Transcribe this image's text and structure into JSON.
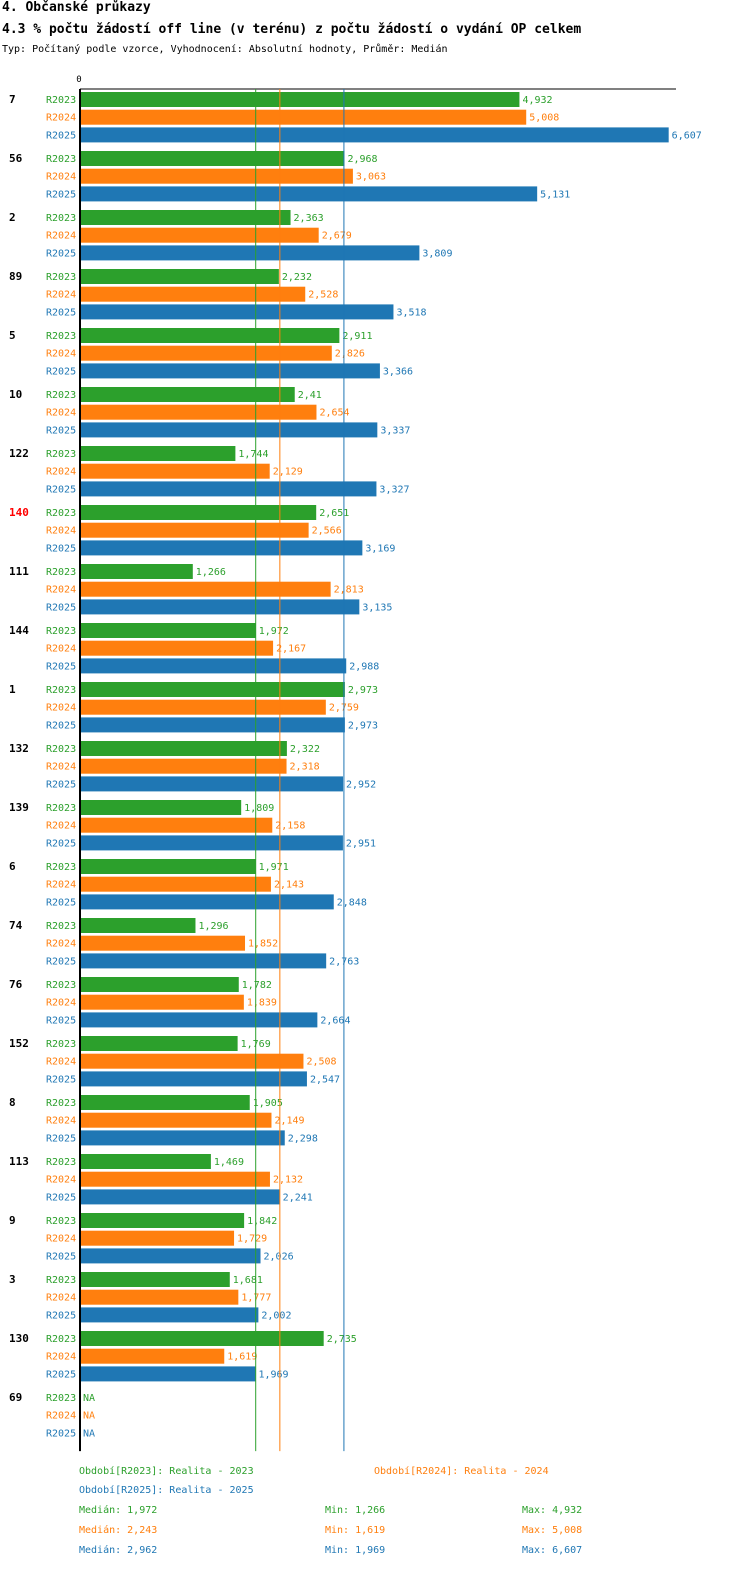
{
  "header": {
    "title": "4. Občanské průkazy",
    "subtitle": "4.3 % počtu žádostí off line (v terénu) z počtu žádostí o vydání OP celkem",
    "type_line": "Typ: Počítaný podle vzorce, Vyhodnocení: Absolutní hodnoty, Průměr: Medián"
  },
  "chart_data": {
    "type": "bar",
    "orientation": "horizontal",
    "axis_zero_label": "0",
    "xlim": [
      0,
      6.9
    ],
    "categories": [
      "7",
      "56",
      "2",
      "89",
      "5",
      "10",
      "122",
      "140",
      "111",
      "144",
      "1",
      "132",
      "139",
      "6",
      "74",
      "76",
      "152",
      "8",
      "113",
      "9",
      "3",
      "130",
      "69"
    ],
    "highlight_category": "140",
    "highlight_color": "#ff0000",
    "series": [
      {
        "name": "R2023",
        "color": "#2ca02c",
        "values": [
          4.932,
          2.968,
          2.363,
          2.232,
          2.911,
          2.41,
          1.744,
          2.651,
          1.266,
          1.972,
          2.973,
          2.322,
          1.809,
          1.971,
          1.296,
          1.782,
          1.769,
          1.905,
          1.469,
          1.842,
          1.681,
          2.735,
          null
        ],
        "labels": [
          "4,932",
          "2,968",
          "2,363",
          "2,232",
          "2,911",
          "2,41",
          "1,744",
          "2,651",
          "1,266",
          "1,972",
          "2,973",
          "2,322",
          "1,809",
          "1,971",
          "1,296",
          "1,782",
          "1,769",
          "1,905",
          "1,469",
          "1,842",
          "1,681",
          "2,735",
          "NA"
        ]
      },
      {
        "name": "R2024",
        "color": "#ff7f0e",
        "values": [
          5.008,
          3.063,
          2.679,
          2.528,
          2.826,
          2.654,
          2.129,
          2.566,
          2.813,
          2.167,
          2.759,
          2.318,
          2.158,
          2.143,
          1.852,
          1.839,
          2.508,
          2.149,
          2.132,
          1.729,
          1.777,
          1.619,
          null
        ],
        "labels": [
          "5,008",
          "3,063",
          "2,679",
          "2,528",
          "2,826",
          "2,654",
          "2,129",
          "2,566",
          "2,813",
          "2,167",
          "2,759",
          "2,318",
          "2,158",
          "2,143",
          "1,852",
          "1,839",
          "2,508",
          "2,149",
          "2,132",
          "1,729",
          "1,777",
          "1,619",
          "NA"
        ]
      },
      {
        "name": "R2025",
        "color": "#1f77b4",
        "values": [
          6.607,
          5.131,
          3.809,
          3.518,
          3.366,
          3.337,
          3.327,
          3.169,
          3.135,
          2.988,
          2.973,
          2.952,
          2.951,
          2.848,
          2.763,
          2.664,
          2.547,
          2.298,
          2.241,
          2.026,
          2.002,
          1.969,
          null
        ],
        "labels": [
          "6,607",
          "5,131",
          "3,809",
          "3,518",
          "3,366",
          "3,337",
          "3,327",
          "3,169",
          "3,135",
          "2,988",
          "2,973",
          "2,952",
          "2,951",
          "2,848",
          "2,763",
          "2,664",
          "2,547",
          "2,298",
          "2,241",
          "2,026",
          "2,002",
          "1,969",
          "NA"
        ]
      }
    ],
    "median_lines": [
      {
        "series": "R2023",
        "value": 1.972
      },
      {
        "series": "R2024",
        "value": 2.243
      },
      {
        "series": "R2025",
        "value": 2.962
      }
    ]
  },
  "legend": {
    "r2023": "Období[R2023]: Realita - 2023",
    "r2024": "Období[R2024]: Realita - 2024",
    "r2025": "Období[R2025]: Realita - 2025"
  },
  "stats": [
    {
      "median": "Medián: 1,972",
      "min": "Min: 1,266",
      "max": "Max: 4,932",
      "color": "#2ca02c"
    },
    {
      "median": "Medián: 2,243",
      "min": "Min: 1,619",
      "max": "Max: 5,008",
      "color": "#ff7f0e"
    },
    {
      "median": "Medián: 2,962",
      "min": "Min: 1,969",
      "max": "Max: 6,607",
      "color": "#1f77b4"
    }
  ]
}
